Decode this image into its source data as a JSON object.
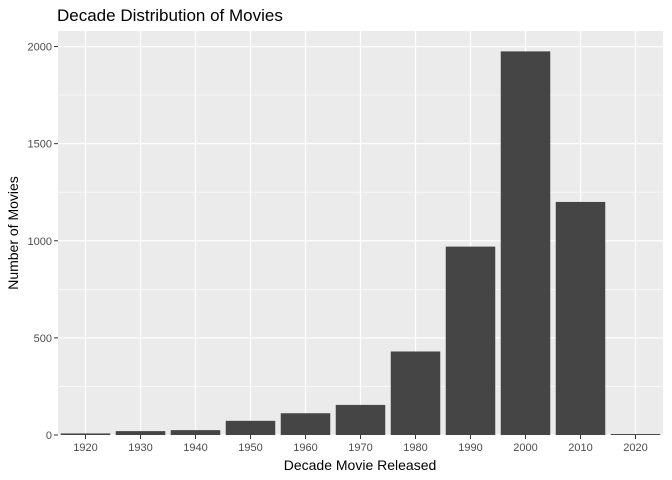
{
  "chart_data": {
    "type": "bar",
    "title": "Decade Distribution of Movies",
    "xlabel": "Decade Movie Released",
    "ylabel": "Number of Movies",
    "categories": [
      "1920",
      "1930",
      "1940",
      "1950",
      "1960",
      "1970",
      "1980",
      "1990",
      "2000",
      "2010",
      "2020"
    ],
    "values": [
      8,
      20,
      25,
      73,
      112,
      155,
      430,
      970,
      1975,
      1200,
      5
    ],
    "ylim": [
      0,
      2080
    ],
    "yticks": [
      0,
      500,
      1000,
      1500,
      2000
    ],
    "grid": true,
    "legend": "none",
    "colors": {
      "panel_background": "#ebebeb",
      "grid_major": "#ffffff",
      "bar_fill": "#454545",
      "tick_text": "#4d4d4d"
    }
  }
}
